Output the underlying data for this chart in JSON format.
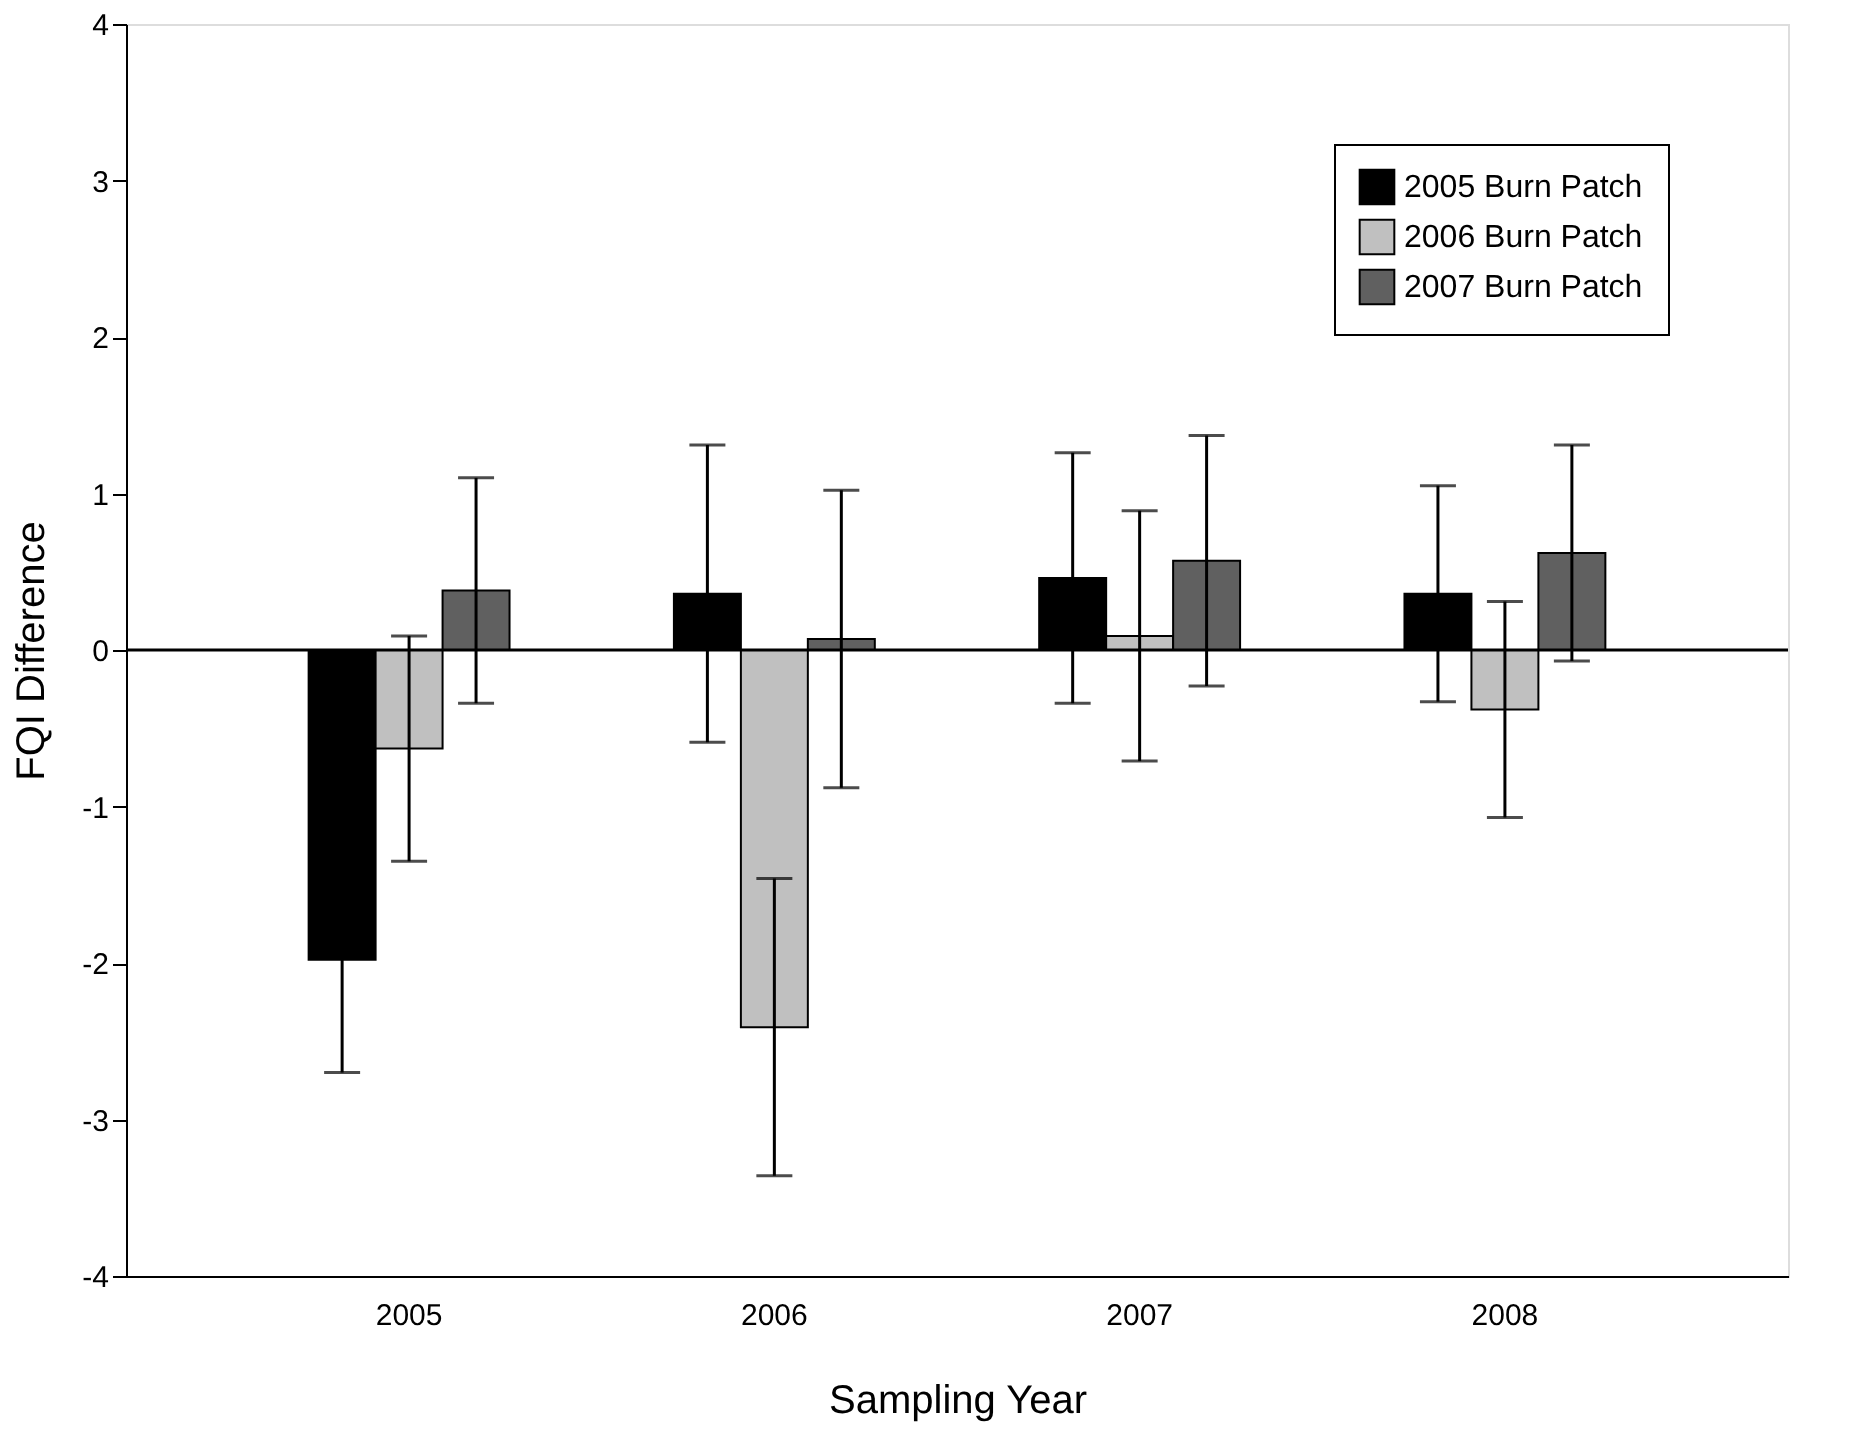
{
  "chart_data": {
    "type": "bar",
    "xlabel": "Sampling Year",
    "ylabel": "FQI Difference",
    "categories": [
      "2005",
      "2006",
      "2007",
      "2008"
    ],
    "ylim": [
      -4,
      4
    ],
    "yticks": [
      -4,
      -3,
      -2,
      -1,
      0,
      1,
      2,
      3,
      4
    ],
    "legend": "top right",
    "grid": false,
    "ref_lines": [
      {
        "axis": "y",
        "value": 0,
        "label": null
      }
    ],
    "series": [
      {
        "name": "2005 Burn Patch",
        "color": "#000000",
        "values": [
          -1.98,
          0.36,
          0.46,
          0.36
        ],
        "errors": [
          0.72,
          0.95,
          0.8,
          0.69
        ]
      },
      {
        "name": "2006 Burn Patch",
        "color": "#c0c0c0",
        "values": [
          -0.63,
          -2.41,
          0.09,
          -0.38
        ],
        "errors": [
          0.72,
          0.95,
          0.8,
          0.69
        ]
      },
      {
        "name": "2007 Burn Patch",
        "color": "#606060",
        "values": [
          0.38,
          0.07,
          0.57,
          0.62
        ],
        "errors": [
          0.72,
          0.95,
          0.8,
          0.69
        ]
      }
    ]
  }
}
